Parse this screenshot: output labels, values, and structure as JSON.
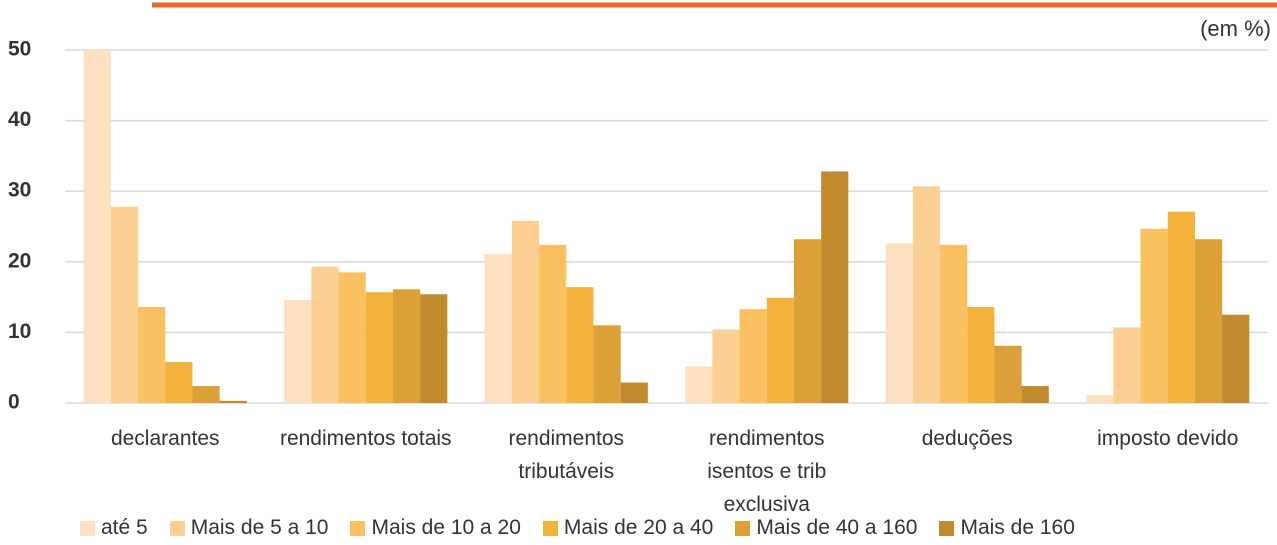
{
  "chart_data": {
    "type": "bar",
    "unit_label": "(em %)",
    "categories": [
      "declarantes",
      "rendimentos totais",
      "rendimentos tributáveis",
      "rendimentos isentos e trib exclusiva",
      "deduções",
      "imposto devido"
    ],
    "series": [
      {
        "name": "até 5",
        "color": "#fde0c0",
        "values": [
          50,
          14.6,
          21.1,
          5.2,
          22.6,
          1.1
        ]
      },
      {
        "name": "Mais de 5 a 10",
        "color": "#fccf93",
        "values": [
          27.8,
          19.3,
          25.8,
          10.4,
          30.7,
          10.7
        ]
      },
      {
        "name": "Mais de 10 a 20",
        "color": "#f9c160",
        "values": [
          13.6,
          18.5,
          22.4,
          13.3,
          22.4,
          24.7
        ]
      },
      {
        "name": "Mais de 20 a 40",
        "color": "#f3b23b",
        "values": [
          5.8,
          15.7,
          16.4,
          14.9,
          13.6,
          27.1
        ]
      },
      {
        "name": "Mais de 40 a 160",
        "color": "#dba037",
        "values": [
          2.4,
          16.1,
          11.0,
          23.2,
          8.1,
          23.2
        ]
      },
      {
        "name": "Mais de 160",
        "color": "#c08a2d",
        "values": [
          0.3,
          15.4,
          2.9,
          32.8,
          2.4,
          12.5
        ]
      }
    ],
    "ylim": [
      0,
      50
    ],
    "yticks": [
      0,
      10,
      20,
      30,
      40,
      50
    ],
    "grid": true
  }
}
